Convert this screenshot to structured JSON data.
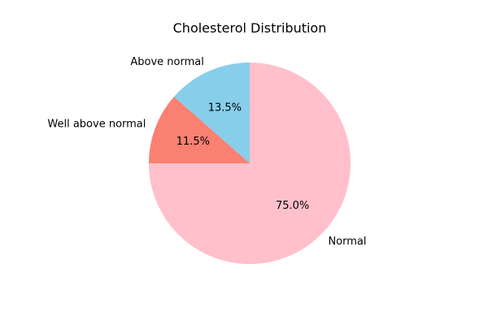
{
  "chart_data": {
    "type": "pie",
    "title": "Cholesterol Distribution",
    "start_angle_deg": 90,
    "direction": "counterclockwise",
    "slices": [
      {
        "label": "Above normal",
        "value": 13.5,
        "pct_label": "13.5%",
        "color": "#87ceeb"
      },
      {
        "label": "Well above normal",
        "value": 11.5,
        "pct_label": "11.5%",
        "color": "#fa8072"
      },
      {
        "label": "Normal",
        "value": 75.0,
        "pct_label": "75.0%",
        "color": "#ffc0cb"
      }
    ],
    "legend": "none"
  }
}
